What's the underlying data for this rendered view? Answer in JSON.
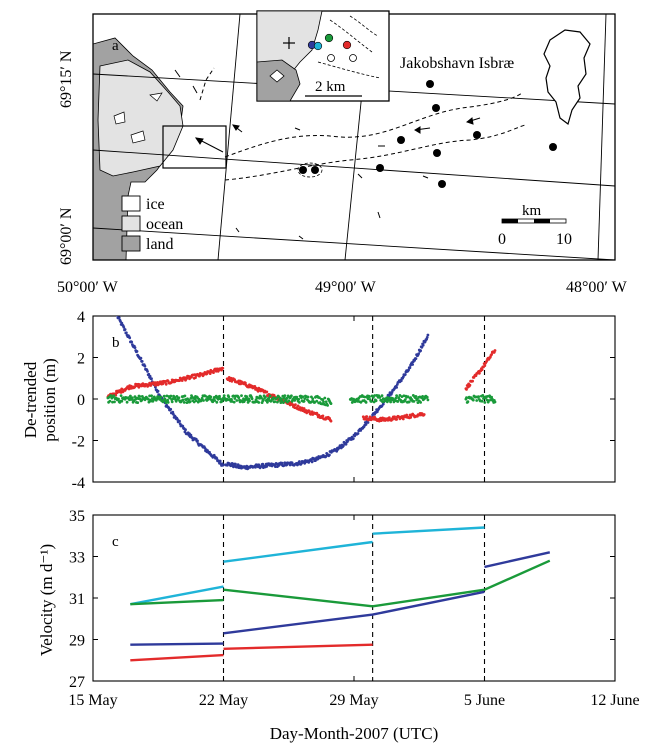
{
  "figure": {
    "panel_labels": [
      "a",
      "b",
      "c"
    ]
  },
  "map": {
    "lat_labels": [
      "69°15′ N",
      "69°00′ N"
    ],
    "lon_labels": [
      "50°00′ W",
      "49°00′ W",
      "48°00′ W"
    ],
    "glacier_name": "Jakobshavn Isbræ",
    "inset_scale": "2 km",
    "scale_bar_unit": "km",
    "scale_bar_ticks": [
      "0",
      "10"
    ],
    "legend": [
      {
        "label": "ice",
        "color": "#ffffff"
      },
      {
        "label": "ocean",
        "color": "#e3e3e3"
      },
      {
        "label": "land",
        "color": "#a2a2a2"
      }
    ],
    "inset_station_colors": [
      "#2f3a9b",
      "#1fb4d8",
      "#1a9a3a",
      "#e32b2b"
    ]
  },
  "chart_data": [
    {
      "panel": "b",
      "type": "scatter",
      "ylabel": "De-trended position (m)",
      "ylim": [
        -4,
        4
      ],
      "yticks": [
        -4,
        -2,
        0,
        2,
        4
      ],
      "xlim": [
        0,
        28
      ],
      "x_units": "days since 15 May 2007",
      "event_lines_x": [
        7,
        15,
        21
      ],
      "series": [
        {
          "color": "#2f3a9b",
          "segments": [
            [
              [
                1.3,
                4.0
              ],
              [
                2.5,
                2.0
              ],
              [
                3.7,
                0.0
              ],
              [
                5.0,
                -1.6
              ],
              [
                6.0,
                -2.4
              ],
              [
                7.0,
                -3.2
              ]
            ],
            [
              [
                7.1,
                -3.1
              ],
              [
                8.0,
                -3.3
              ],
              [
                9.5,
                -3.2
              ],
              [
                11.0,
                -3.1
              ],
              [
                12.0,
                -2.9
              ],
              [
                13.0,
                -2.5
              ],
              [
                14.0,
                -1.8
              ],
              [
                15.0,
                -0.8
              ],
              [
                16.0,
                0.3
              ],
              [
                17.0,
                1.5
              ],
              [
                18.0,
                3.1
              ]
            ]
          ]
        },
        {
          "color": "#e32b2b",
          "segments": [
            [
              [
                0.8,
                0.1
              ],
              [
                2.0,
                0.6
              ],
              [
                4.0,
                0.8
              ],
              [
                6.0,
                1.2
              ],
              [
                7.0,
                1.5
              ]
            ],
            [
              [
                7.2,
                1.0
              ],
              [
                8.5,
                0.6
              ],
              [
                10.0,
                0.0
              ],
              [
                11.5,
                -0.6
              ],
              [
                12.8,
                -1.0
              ]
            ],
            [
              [
                14.5,
                -0.9
              ],
              [
                15.5,
                -1.0
              ],
              [
                16.5,
                -0.9
              ],
              [
                17.8,
                -0.7
              ]
            ],
            [
              [
                20.0,
                0.5
              ],
              [
                20.8,
                1.4
              ],
              [
                21.6,
                2.4
              ]
            ]
          ]
        },
        {
          "color": "#1a9a3a",
          "segments": [
            [
              [
                0.8,
                0.0
              ],
              [
                3.0,
                0.0
              ],
              [
                6.0,
                0.0
              ],
              [
                9.0,
                0.0
              ],
              [
                12.0,
                0.0
              ],
              [
                12.8,
                -0.2
              ]
            ],
            [
              [
                13.8,
                0.0
              ],
              [
                16.0,
                0.0
              ],
              [
                18.0,
                0.0
              ]
            ],
            [
              [
                20.0,
                0.0
              ],
              [
                20.8,
                0.0
              ],
              [
                21.6,
                0.0
              ]
            ]
          ]
        }
      ]
    },
    {
      "panel": "c",
      "type": "line",
      "ylabel": "Velocity (m d⁻¹)",
      "ylim": [
        27,
        35
      ],
      "yticks": [
        27,
        29,
        31,
        33,
        35
      ],
      "xlim": [
        0,
        28
      ],
      "x_units": "days since 15 May 2007",
      "xticks": [
        0,
        7,
        14,
        21,
        28
      ],
      "xtick_labels": [
        "15 May",
        "22 May",
        "29 May",
        "5 June",
        "12 June"
      ],
      "xlabel": "Day-Month-2007 (UTC)",
      "event_lines_x": [
        7,
        15,
        21
      ],
      "series": [
        {
          "color": "#1fb4d8",
          "segments": [
            [
              [
                2,
                30.7
              ],
              [
                7,
                31.55
              ]
            ],
            [
              [
                7,
                32.75
              ],
              [
                15,
                33.7
              ]
            ],
            [
              [
                15,
                34.1
              ],
              [
                21,
                34.4
              ]
            ]
          ]
        },
        {
          "color": "#1a9a3a",
          "segments": [
            [
              [
                2,
                30.7
              ],
              [
                7,
                30.9
              ]
            ],
            [
              [
                7,
                31.4
              ],
              [
                15,
                30.6
              ]
            ],
            [
              [
                15,
                30.6
              ],
              [
                21,
                31.4
              ],
              [
                24.5,
                32.8
              ]
            ]
          ]
        },
        {
          "color": "#2f3a9b",
          "segments": [
            [
              [
                2,
                28.75
              ],
              [
                7,
                28.8
              ]
            ],
            [
              [
                7,
                29.3
              ],
              [
                15,
                30.2
              ],
              [
                21,
                31.3
              ]
            ],
            [
              [
                21,
                32.5
              ],
              [
                24.5,
                33.2
              ]
            ]
          ]
        },
        {
          "color": "#e32b2b",
          "segments": [
            [
              [
                2,
                28.0
              ],
              [
                7,
                28.25
              ]
            ],
            [
              [
                7,
                28.55
              ],
              [
                15,
                28.75
              ]
            ]
          ]
        }
      ]
    }
  ]
}
